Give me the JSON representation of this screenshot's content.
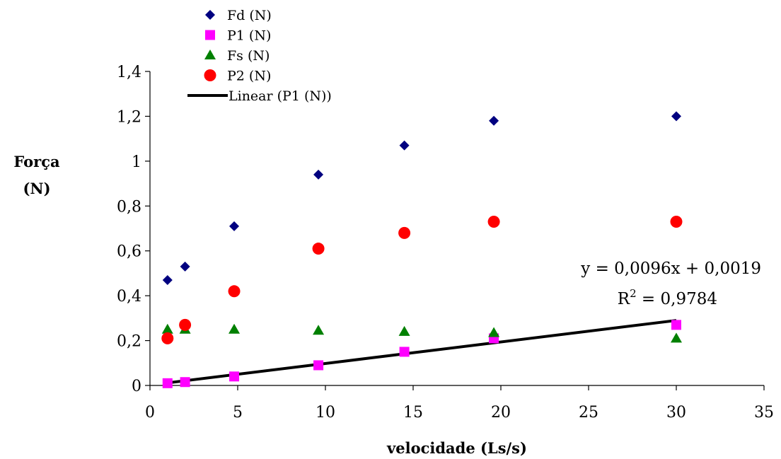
{
  "chart_data": {
    "type": "scatter",
    "xlabel": "velocidade (Ls/s)",
    "ylabel_lines": [
      "Força",
      "(N)"
    ],
    "xlim": [
      0,
      35
    ],
    "ylim": [
      0,
      1.4
    ],
    "xticks": [
      0,
      5,
      10,
      15,
      20,
      25,
      30,
      35
    ],
    "yticks": [
      0,
      0.2,
      0.4,
      0.6,
      0.8,
      1,
      1.2,
      1.4
    ],
    "xtick_labels": [
      "0",
      "5",
      "10",
      "15",
      "20",
      "25",
      "30",
      "35"
    ],
    "ytick_labels": [
      "0",
      "0,2",
      "0,4",
      "0,6",
      "0,8",
      "1",
      "1,2",
      "1,4"
    ],
    "grid": false,
    "legend_position": "top-left",
    "x": [
      1,
      2,
      4.8,
      9.6,
      14.5,
      19.6,
      30
    ],
    "series": [
      {
        "name": "Fd (N)",
        "marker": "diamond",
        "color": "#000080",
        "values": [
          0.47,
          0.53,
          0.71,
          0.94,
          1.07,
          1.18,
          1.2
        ]
      },
      {
        "name": "P1 (N)",
        "marker": "square",
        "color": "#FF00FF",
        "values": [
          0.01,
          0.015,
          0.04,
          0.09,
          0.15,
          0.21,
          0.27
        ]
      },
      {
        "name": "Fs (N)",
        "marker": "triangle",
        "color": "#008000",
        "values": [
          0.25,
          0.25,
          0.25,
          0.245,
          0.24,
          0.235,
          0.21
        ]
      },
      {
        "name": "P2 (N)",
        "marker": "circle",
        "color": "#FF0000",
        "values": [
          0.21,
          0.27,
          0.42,
          0.61,
          0.68,
          0.73,
          0.73
        ]
      }
    ],
    "trendline": {
      "name": "Linear (P1 (N))",
      "color": "#000000",
      "slope": 0.0096,
      "intercept": 0.0019,
      "x_range": [
        1,
        30
      ],
      "equation": "y = 0,0096x + 0,0019",
      "r2_prefix": "R",
      "r2_sup": "2",
      "r2_suffix": " = 0,9784"
    }
  }
}
